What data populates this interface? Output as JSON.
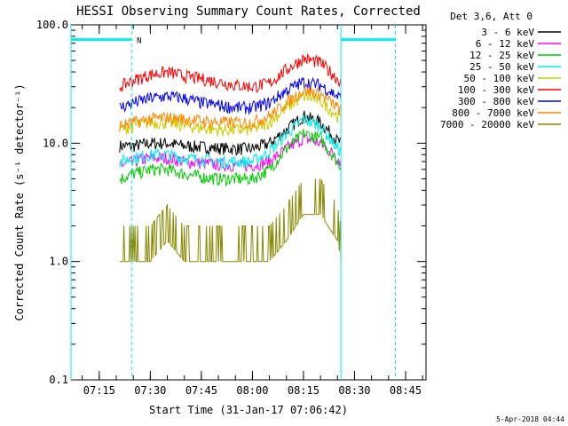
{
  "chart_data": {
    "type": "line",
    "title": "HESSI Observing Summary Count Rates, Corrected",
    "xlabel": "Start Time (31-Jan-17 07:06:42)",
    "ylabel": "Corrected Count Rate (s⁻¹ detector⁻¹)",
    "footer": "5-Apr-2018 04:44",
    "x_scale": "time",
    "y_scale": "log",
    "xlim": [
      "07:06:42",
      "08:51:00"
    ],
    "ylim": [
      0.1,
      100.0
    ],
    "x_ticks": [
      "07:15",
      "07:30",
      "07:45",
      "08:00",
      "08:15",
      "08:30",
      "08:45"
    ],
    "y_ticks": [
      "0.1",
      "1.0",
      "10.0",
      "100.0"
    ],
    "grid": false,
    "legend_position": "right-outside",
    "legend": {
      "title": "Det 3,6, Att 0",
      "entries": [
        {
          "label": "3 - 6 keV",
          "color": "#000000"
        },
        {
          "label": "6 - 12 keV",
          "color": "#ff00ff"
        },
        {
          "label": "12 - 25 keV",
          "color": "#00cc00"
        },
        {
          "label": "25 - 50 keV",
          "color": "#00eeee"
        },
        {
          "label": "50 - 100 keV",
          "color": "#cccc00"
        },
        {
          "label": "100 - 300 keV",
          "color": "#ff0000"
        },
        {
          "label": "300 - 800 keV",
          "color": "#0000ff"
        },
        {
          "label": "800 - 7000 keV",
          "color": "#ff8800"
        },
        {
          "label": "7000 - 20000 keV",
          "color": "#888800"
        }
      ]
    },
    "annotations": [
      {
        "type": "night_bar",
        "color": "#00eeee",
        "x_start": "07:06:42",
        "x_end": "07:24:30",
        "y": 75
      },
      {
        "type": "night_bar",
        "color": "#00eeee",
        "x_start": "08:26:00",
        "x_end": "08:42:00",
        "y": 75
      },
      {
        "type": "label",
        "text": "N",
        "x": "07:25:00",
        "y": 75,
        "color": "#00eeee"
      },
      {
        "type": "vline",
        "style": "solid",
        "x": "07:06:42",
        "color": "#00eeee"
      },
      {
        "type": "vline",
        "style": "dashed",
        "x": "07:24:30",
        "color": "#00eeee"
      },
      {
        "type": "vline",
        "style": "solid",
        "x": "08:26:00",
        "color": "#00eeee"
      },
      {
        "type": "vline",
        "style": "dashed",
        "x": "08:42:00",
        "color": "#00eeee"
      }
    ],
    "x": [
      "07:21",
      "07:25",
      "07:30",
      "07:35",
      "07:40",
      "07:45",
      "07:50",
      "07:55",
      "08:00",
      "08:05",
      "08:10",
      "08:15",
      "08:20",
      "08:25",
      "08:26"
    ],
    "series": [
      {
        "name": "3 - 6 keV",
        "color": "#000000",
        "values": [
          9.5,
          9.5,
          10.0,
          10.0,
          9.5,
          9.3,
          9.1,
          9.0,
          9.0,
          10.0,
          13.0,
          17.0,
          15.0,
          10.5,
          10.0
        ]
      },
      {
        "name": "6 - 12 keV",
        "color": "#ff00ff",
        "values": [
          6.5,
          7.0,
          7.5,
          7.5,
          7.0,
          6.8,
          6.6,
          6.5,
          6.5,
          7.0,
          9.0,
          11.0,
          10.0,
          7.5,
          7.0
        ]
      },
      {
        "name": "12 - 25 keV",
        "color": "#00cc00",
        "values": [
          5.0,
          5.5,
          6.0,
          6.0,
          5.5,
          5.2,
          5.0,
          5.0,
          5.0,
          6.0,
          9.0,
          12.0,
          11.0,
          7.0,
          6.5
        ]
      },
      {
        "name": "25 - 50 keV",
        "color": "#00eeee",
        "values": [
          7.0,
          7.5,
          8.0,
          8.0,
          7.5,
          7.3,
          7.0,
          7.0,
          7.0,
          8.5,
          12.0,
          16.0,
          14.0,
          9.0,
          8.5
        ]
      },
      {
        "name": "50 - 100 keV",
        "color": "#cccc00",
        "values": [
          13.0,
          14.0,
          15.0,
          15.0,
          14.0,
          13.5,
          13.0,
          13.0,
          13.0,
          15.0,
          20.0,
          25.0,
          23.0,
          17.0,
          16.0
        ]
      },
      {
        "name": "100 - 300 keV",
        "color": "#ff0000",
        "values": [
          30.0,
          34.0,
          38.0,
          40.0,
          37.0,
          35.0,
          33.0,
          31.0,
          30.0,
          32.0,
          42.0,
          52.0,
          48.0,
          35.0,
          33.0
        ]
      },
      {
        "name": "300 - 800 keV",
        "color": "#0000ff",
        "values": [
          20.0,
          22.0,
          24.0,
          25.0,
          24.0,
          22.0,
          21.0,
          20.0,
          20.0,
          22.0,
          28.0,
          33.0,
          31.0,
          25.0,
          24.0
        ]
      },
      {
        "name": "800 - 7000 keV",
        "color": "#ff8800",
        "values": [
          14.0,
          15.0,
          16.0,
          16.5,
          16.0,
          15.5,
          15.0,
          15.0,
          15.0,
          17.0,
          22.0,
          28.0,
          26.0,
          20.0,
          19.0
        ]
      },
      {
        "name": "7000 - 20000 keV",
        "color": "#888800",
        "values": [
          1.0,
          1.0,
          1.0,
          1.5,
          1.0,
          1.0,
          1.0,
          1.0,
          1.0,
          1.0,
          1.5,
          2.5,
          2.5,
          1.5,
          1.0
        ]
      }
    ]
  }
}
